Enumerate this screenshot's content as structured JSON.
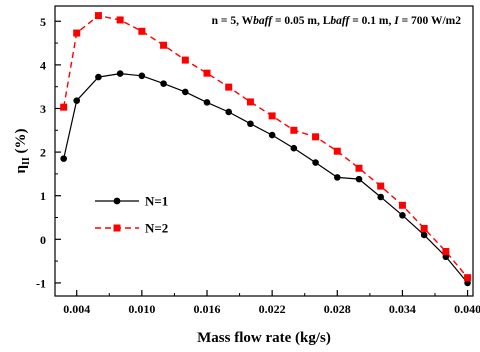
{
  "chart_data": {
    "type": "line",
    "title": "",
    "annotation": "n = 5, Wbaff = 0.05 m, Lbaff = 0.1 m, I = 700 W/m2",
    "annotation_parts": [
      {
        "text": "n = 5, W",
        "italic": false
      },
      {
        "text": "baff",
        "italic": true
      },
      {
        "text": " = 0.05 m, L",
        "italic": false
      },
      {
        "text": "baff",
        "italic": true
      },
      {
        "text": " = 0.1 m, ",
        "italic": false
      },
      {
        "text": "I",
        "italic": true
      },
      {
        "text": " = 700 W/m2",
        "italic": false
      }
    ],
    "xlabel": "Mass flow rate (kg/s)",
    "ylabel": "ηII (%)",
    "ylabel_main": "η",
    "ylabel_sub": "II",
    "ylabel_unit": " (%)",
    "xlim": [
      0.002,
      0.0405
    ],
    "ylim": [
      -1.3,
      5.35
    ],
    "xticks": [
      0.004,
      0.01,
      0.016,
      0.022,
      0.028,
      0.034,
      0.04
    ],
    "xtick_labels": [
      "0.004",
      "0.010",
      "0.016",
      "0.022",
      "0.028",
      "0.034",
      "0.040"
    ],
    "xticks_minor": [
      0.007,
      0.013,
      0.019,
      0.025,
      0.031,
      0.037
    ],
    "yticks": [
      -1,
      0,
      1,
      2,
      3,
      4,
      5
    ],
    "ytick_labels": [
      "-1",
      "0",
      "1",
      "2",
      "3",
      "4",
      "5"
    ],
    "yticks_minor": [
      -0.5,
      0.5,
      1.5,
      2.5,
      3.5,
      4.5
    ],
    "grid": false,
    "legend_position": "left-center",
    "x": [
      0.0028,
      0.004,
      0.006,
      0.008,
      0.01,
      0.012,
      0.014,
      0.016,
      0.018,
      0.02,
      0.022,
      0.024,
      0.026,
      0.028,
      0.03,
      0.032,
      0.034,
      0.036,
      0.038,
      0.04
    ],
    "series": [
      {
        "name": "N=1",
        "color": "#000000",
        "line_style": "solid",
        "marker": "circle",
        "values": [
          1.85,
          3.18,
          3.72,
          3.8,
          3.75,
          3.57,
          3.38,
          3.14,
          2.92,
          2.65,
          2.39,
          2.09,
          1.76,
          1.42,
          1.38,
          0.97,
          0.55,
          0.1,
          -0.4,
          -1.0
        ]
      },
      {
        "name": "N=2",
        "color": "#ff0000",
        "line_style": "dashed",
        "marker": "square",
        "values": [
          3.03,
          4.73,
          5.13,
          5.03,
          4.77,
          4.45,
          4.11,
          3.81,
          3.49,
          3.15,
          2.83,
          2.5,
          2.35,
          2.02,
          1.63,
          1.22,
          0.78,
          0.25,
          -0.28,
          -0.88
        ]
      }
    ]
  }
}
